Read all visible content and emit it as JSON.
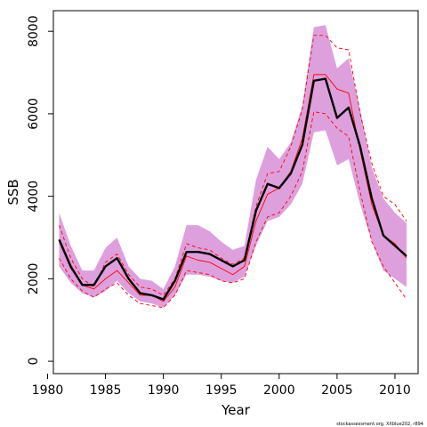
{
  "chart_data": {
    "type": "line",
    "title": "",
    "xlabel": "Year",
    "ylabel": "SSB",
    "xlim": [
      1980.5,
      2012
    ],
    "ylim": [
      -300,
      8500
    ],
    "x_ticks": [
      1980,
      1985,
      1990,
      1995,
      2000,
      2005,
      2010
    ],
    "y_ticks": [
      0,
      2000,
      4000,
      6000,
      8000
    ],
    "grid": false,
    "legend": "none",
    "footer_note": "stockassessment.org, XXblue202, r894",
    "x": [
      1981,
      1982,
      1983,
      1984,
      1985,
      1986,
      1987,
      1988,
      1989,
      1990,
      1991,
      1992,
      1993,
      1994,
      1995,
      1996,
      1997,
      1998,
      1999,
      2000,
      2001,
      2002,
      2003,
      2004,
      2005,
      2006,
      2007,
      2008,
      2009,
      2010,
      2011
    ],
    "series": [
      {
        "role": "band",
        "color": "#dda0dd",
        "low": [
          2300,
          1900,
          1650,
          1550,
          1700,
          1950,
          1650,
          1450,
          1400,
          1300,
          1600,
          2100,
          2100,
          2050,
          1950,
          1900,
          2050,
          2800,
          3400,
          3500,
          3800,
          4300,
          5550,
          5600,
          4750,
          4900,
          3800,
          2900,
          2200,
          2000,
          1800
        ],
        "high": [
          3600,
          2800,
          2200,
          2200,
          2750,
          3000,
          2300,
          2000,
          1950,
          1750,
          2300,
          3300,
          3300,
          3150,
          2900,
          2700,
          2800,
          4400,
          5200,
          4900,
          5300,
          6200,
          8100,
          8150,
          7100,
          7350,
          6100,
          4700,
          3950,
          3600,
          3350
        ]
      },
      {
        "role": "upper-bound",
        "color": "#ff0000",
        "dashed": true,
        "values": [
          3300,
          2500,
          2000,
          1800,
          2400,
          2600,
          2100,
          1800,
          1750,
          1600,
          2000,
          2850,
          2750,
          2700,
          2500,
          2350,
          2500,
          3750,
          4550,
          4600,
          5200,
          6100,
          7900,
          7900,
          7600,
          7550,
          6000,
          4800,
          4000,
          3800,
          3400
        ]
      },
      {
        "role": "lower-bound",
        "color": "#ff0000",
        "dashed": true,
        "values": [
          2500,
          2000,
          1700,
          1550,
          1750,
          1900,
          1600,
          1400,
          1350,
          1300,
          1600,
          2200,
          2150,
          2100,
          1950,
          1900,
          2000,
          2900,
          3500,
          3600,
          4000,
          4600,
          6050,
          6000,
          5650,
          5450,
          4100,
          2900,
          2300,
          1900,
          1500
        ]
      },
      {
        "role": "reference",
        "color": "#ff0000",
        "dashed": false,
        "values": [
          2900,
          2250,
          1850,
          1750,
          2000,
          2200,
          1900,
          1600,
          1600,
          1450,
          1800,
          2550,
          2450,
          2400,
          2250,
          2100,
          2300,
          3400,
          4050,
          4200,
          4600,
          5400,
          6950,
          6950,
          6600,
          6500,
          5100,
          3800,
          3050,
          2850,
          2500
        ]
      },
      {
        "role": "estimate",
        "color": "#000000",
        "dashed": false,
        "values": [
          2950,
          2300,
          1850,
          1850,
          2300,
          2500,
          2000,
          1650,
          1600,
          1500,
          1950,
          2650,
          2650,
          2600,
          2450,
          2300,
          2450,
          3650,
          4300,
          4200,
          4550,
          5250,
          6800,
          6850,
          5900,
          6150,
          5200,
          3950,
          3050,
          2800,
          2550
        ]
      }
    ]
  }
}
